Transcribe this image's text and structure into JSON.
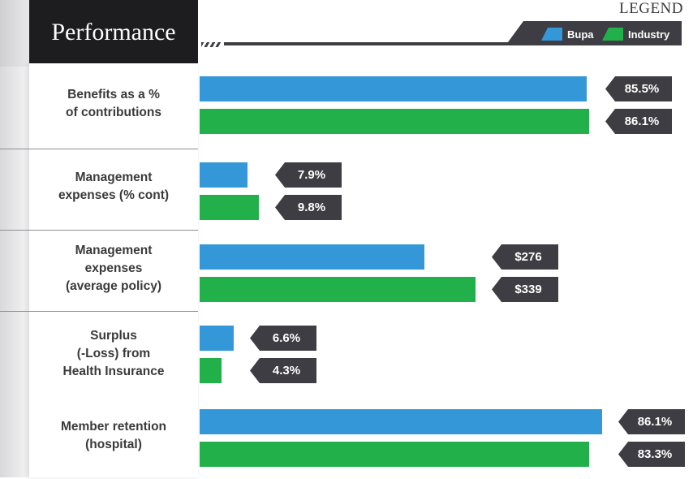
{
  "title": "Performance",
  "legend": {
    "heading": "LEGEND",
    "items": [
      {
        "label": "Bupa",
        "color": "#3497d8"
      },
      {
        "label": "Industry",
        "color": "#22b04b"
      }
    ]
  },
  "chart_data": {
    "type": "bar",
    "orientation": "horizontal",
    "title": "Performance",
    "legend_position": "top-right",
    "grid": false,
    "categories": [
      "Benefits as a % of contributions",
      "Management expenses (% cont)",
      "Management expenses (average policy)",
      "Surplus (-Loss) from Health Insurance",
      "Member retention (hospital)"
    ],
    "category_lines": [
      [
        "Benefits as a %",
        "of contributions"
      ],
      [
        "Management",
        "expenses (% cont)"
      ],
      [
        "Management",
        "expenses",
        "(average policy)"
      ],
      [
        "Surplus",
        "(-Loss) from",
        "Health Insurance"
      ],
      [
        "Member retention",
        "(hospital)"
      ]
    ],
    "series": [
      {
        "name": "Bupa",
        "color": "#3497d8",
        "values": [
          85.5,
          7.9,
          276,
          6.6,
          86.1
        ],
        "labels": [
          "85.5%",
          "7.9%",
          "$276",
          "6.6%",
          "86.1%"
        ]
      },
      {
        "name": "Industry",
        "color": "#22b04b",
        "values": [
          86.1,
          9.8,
          339,
          4.3,
          83.3
        ],
        "labels": [
          "86.1%",
          "9.8%",
          "$339",
          "4.3%",
          "83.3%"
        ]
      }
    ],
    "category_max": [
      86.1,
      86.1,
      86.1,
      86.1,
      86.1
    ]
  }
}
